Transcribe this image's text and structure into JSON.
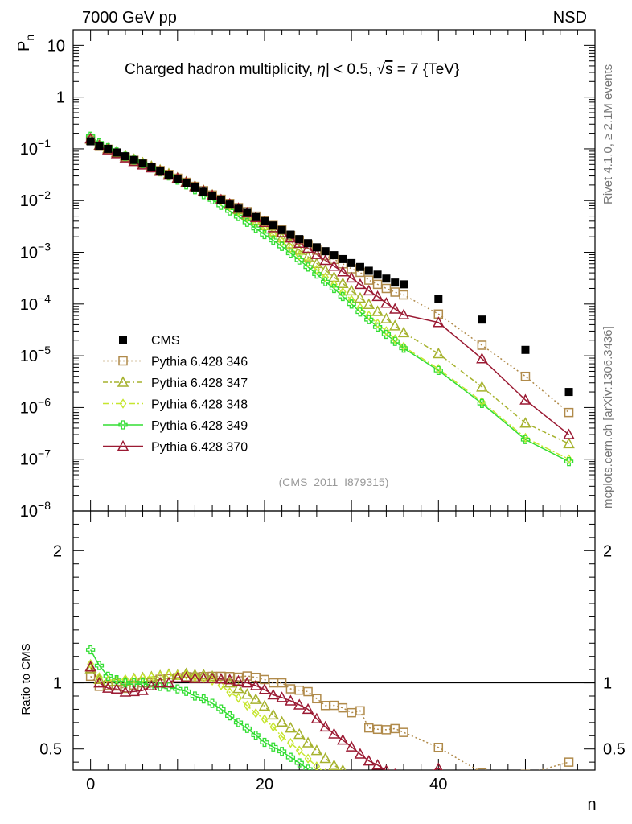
{
  "header": {
    "left": "7000 GeV pp",
    "right": "NSD"
  },
  "side_text": {
    "top": "Rivet 4.1.0, ≥ 2.1M events",
    "bottom": "mcplots.cern.ch [arXiv:1306.3436]"
  },
  "chart_data": [
    {
      "type": "scatter",
      "title": "Charged hadron multiplicity, |η| < 0.5, √s = 7 {TeV}",
      "title_parts": {
        "a": "Charged hadron multiplicity, ",
        "eta": "η",
        "b": "| < 0.5, ",
        "sqrt": "√",
        "s": "s",
        "c": " = 7 {TeV}"
      },
      "watermark": "(CMS_2011_I879315)",
      "ylabel": "P",
      "ylabel_sub": "n",
      "yscale": "log",
      "ylim": [
        1e-08,
        20
      ],
      "xlim": [
        -2,
        58
      ],
      "y_ticks": [
        {
          "v": 10,
          "t": "10"
        },
        {
          "v": 1,
          "t": "1"
        },
        {
          "v": 0.1,
          "t": "10",
          "e": "−1"
        },
        {
          "v": 0.01,
          "t": "10",
          "e": "−2"
        },
        {
          "v": 0.001,
          "t": "10",
          "e": "−3"
        },
        {
          "v": 0.0001,
          "t": "10",
          "e": "−4"
        },
        {
          "v": 1e-05,
          "t": "10",
          "e": "−5"
        },
        {
          "v": 1e-06,
          "t": "10",
          "e": "−6"
        },
        {
          "v": 1e-07,
          "t": "10",
          "e": "−7"
        },
        {
          "v": 1e-08,
          "t": "10",
          "e": "−8"
        }
      ],
      "legend": [
        "CMS",
        "Pythia 6.428 346",
        "Pythia 6.428 347",
        "Pythia 6.428 348",
        "Pythia 6.428 349",
        "Pythia 6.428 370"
      ],
      "series": [
        {
          "name": "CMS",
          "marker": "filled-square",
          "color": "#000000",
          "x": [
            0,
            1,
            2,
            3,
            4,
            5,
            6,
            7,
            8,
            9,
            10,
            11,
            12,
            13,
            14,
            15,
            16,
            17,
            18,
            19,
            20,
            21,
            22,
            23,
            24,
            25,
            26,
            27,
            28,
            29,
            30,
            31,
            32,
            33,
            34,
            35,
            36,
            40,
            45,
            50,
            55
          ],
          "y": [
            0.14,
            0.115,
            0.1,
            0.085,
            0.072,
            0.061,
            0.052,
            0.044,
            0.037,
            0.031,
            0.026,
            0.0215,
            0.018,
            0.0148,
            0.0122,
            0.0101,
            0.0084,
            0.007,
            0.0058,
            0.0048,
            0.004,
            0.0033,
            0.0027,
            0.0022,
            0.0018,
            0.0015,
            0.00125,
            0.00105,
            0.00088,
            0.00074,
            0.00062,
            0.00052,
            0.00044,
            0.00037,
            0.00031,
            0.00026,
            0.00024,
            0.000125,
            5e-05,
            1.3e-05,
            2e-06
          ]
        },
        {
          "name": "Pythia 6.428 346",
          "marker": "open-square",
          "color": "#b08a4a",
          "dash": "2,3",
          "x": [
            0,
            1,
            2,
            3,
            4,
            5,
            6,
            7,
            8,
            9,
            10,
            11,
            12,
            13,
            14,
            15,
            16,
            17,
            18,
            19,
            20,
            21,
            22,
            23,
            24,
            25,
            26,
            27,
            28,
            29,
            30,
            31,
            32,
            33,
            34,
            35,
            36,
            40,
            45,
            50,
            55
          ],
          "y": [
            0.147,
            0.112,
            0.098,
            0.083,
            0.069,
            0.06,
            0.052,
            0.044,
            0.038,
            0.032,
            0.027,
            0.0225,
            0.0188,
            0.0155,
            0.0128,
            0.0106,
            0.0088,
            0.0073,
            0.0061,
            0.005,
            0.0041,
            0.0033,
            0.0027,
            0.0021,
            0.0017,
            0.0014,
            0.0011,
            0.00087,
            0.00073,
            0.0006,
            0.00048,
            0.00041,
            0.00029,
            0.00024,
            0.0002,
            0.00017,
            0.00015,
            6.4e-05,
            1.6e-05,
            4e-06,
            8e-07
          ]
        },
        {
          "name": "Pythia 6.428 347",
          "marker": "open-triangle",
          "color": "#a6b22e",
          "dash": "6,3,2,3",
          "x": [
            0,
            1,
            2,
            3,
            4,
            5,
            6,
            7,
            8,
            9,
            10,
            11,
            12,
            13,
            14,
            15,
            16,
            17,
            18,
            19,
            20,
            21,
            22,
            23,
            24,
            25,
            26,
            27,
            28,
            29,
            30,
            31,
            32,
            33,
            34,
            35,
            36,
            40,
            45,
            50,
            55
          ],
          "y": [
            0.155,
            0.118,
            0.101,
            0.086,
            0.073,
            0.063,
            0.054,
            0.046,
            0.039,
            0.033,
            0.0275,
            0.023,
            0.0191,
            0.0157,
            0.0128,
            0.0104,
            0.0084,
            0.0067,
            0.0053,
            0.0042,
            0.0033,
            0.0025,
            0.0019,
            0.00145,
            0.0011,
            0.00082,
            0.00061,
            0.00045,
            0.00033,
            0.00025,
            0.00018,
            0.00013,
            9.85e-05,
            7.2e-05,
            5.2e-05,
            3.8e-05,
            2.8e-05,
            1.1e-05,
            2.5e-06,
            5e-07,
            2e-07
          ]
        },
        {
          "name": "Pythia 6.428 348",
          "marker": "open-diamond",
          "color": "#c6e62e",
          "dash": "8,3,2,3",
          "x": [
            0,
            1,
            2,
            3,
            4,
            5,
            6,
            7,
            8,
            9,
            10,
            11,
            12,
            13,
            14,
            15,
            16,
            17,
            18,
            19,
            20,
            21,
            22,
            23,
            24,
            25,
            26,
            27,
            28,
            29,
            30,
            31,
            32,
            33,
            34,
            35,
            36,
            40,
            45,
            50,
            55
          ],
          "y": [
            0.16,
            0.12,
            0.102,
            0.087,
            0.074,
            0.063,
            0.054,
            0.046,
            0.039,
            0.033,
            0.0275,
            0.0228,
            0.0188,
            0.0153,
            0.0124,
            0.0099,
            0.0078,
            0.0062,
            0.0048,
            0.0037,
            0.0029,
            0.0022,
            0.0016,
            0.0012,
            0.00088,
            0.00064,
            0.00046,
            0.00033,
            0.00024,
            0.00017,
            0.00012,
            8.5e-05,
            6e-05,
            4.2e-05,
            3e-05,
            2.1e-05,
            1.5e-05,
            5.6e-06,
            1.3e-06,
            2.6e-07,
            1e-07
          ]
        },
        {
          "name": "Pythia 6.428 349",
          "marker": "open-cross",
          "color": "#33dd33",
          "dash": "",
          "x": [
            0,
            1,
            2,
            3,
            4,
            5,
            6,
            7,
            8,
            9,
            10,
            11,
            12,
            13,
            14,
            15,
            16,
            17,
            18,
            19,
            20,
            21,
            22,
            23,
            24,
            25,
            26,
            27,
            28,
            29,
            30,
            31,
            32,
            33,
            34,
            35,
            36,
            40,
            45,
            50,
            55
          ],
          "y": [
            0.175,
            0.13,
            0.105,
            0.087,
            0.072,
            0.061,
            0.052,
            0.043,
            0.036,
            0.03,
            0.0248,
            0.0201,
            0.0162,
            0.013,
            0.0103,
            0.0081,
            0.0063,
            0.0049,
            0.0038,
            0.0029,
            0.0022,
            0.0017,
            0.0013,
            0.00096,
            0.00071,
            0.00052,
            0.00038,
            0.00027,
            0.0002,
            0.00014,
            0.0001,
            7e-05,
            5e-05,
            3.6e-05,
            2.6e-05,
            1.9e-05,
            1.4e-05,
            5.2e-06,
            1.2e-06,
            2.4e-07,
            9e-08
          ]
        },
        {
          "name": "Pythia 6.428 370",
          "marker": "open-triangle",
          "color": "#9b1a33",
          "dash": "",
          "x": [
            0,
            1,
            2,
            3,
            4,
            5,
            6,
            7,
            8,
            9,
            10,
            11,
            12,
            13,
            14,
            15,
            16,
            17,
            18,
            19,
            20,
            21,
            22,
            23,
            24,
            25,
            26,
            27,
            28,
            29,
            30,
            31,
            32,
            33,
            34,
            35,
            36,
            40,
            45,
            50,
            55
          ],
          "y": [
            0.157,
            0.115,
            0.096,
            0.081,
            0.067,
            0.057,
            0.049,
            0.043,
            0.037,
            0.031,
            0.027,
            0.0224,
            0.0186,
            0.0153,
            0.0126,
            0.0104,
            0.0086,
            0.0071,
            0.0058,
            0.0047,
            0.0038,
            0.003,
            0.0024,
            0.0019,
            0.0015,
            0.0012,
            0.00091,
            0.0007,
            0.00054,
            0.00042,
            0.00032,
            0.00024,
            0.00018,
            0.00014,
            0.000104,
            8e-05,
            6.2e-05,
            4.4e-05,
            8.8e-06,
            1.4e-06,
            3e-07
          ]
        }
      ]
    },
    {
      "type": "scatter",
      "ylabel": "Ratio to CMS",
      "xlabel": "n",
      "ylim": [
        0.34,
        2.3
      ],
      "xlim": [
        -2,
        58
      ],
      "y_ticks": [
        {
          "v": 0.5,
          "t": "0.5"
        },
        {
          "v": 1,
          "t": "1"
        },
        {
          "v": 2,
          "t": "2"
        }
      ],
      "x_ticks": [
        {
          "v": 0,
          "t": "0"
        },
        {
          "v": 20,
          "t": "20"
        },
        {
          "v": 40,
          "t": "40"
        }
      ],
      "reference_line": 1
    }
  ]
}
